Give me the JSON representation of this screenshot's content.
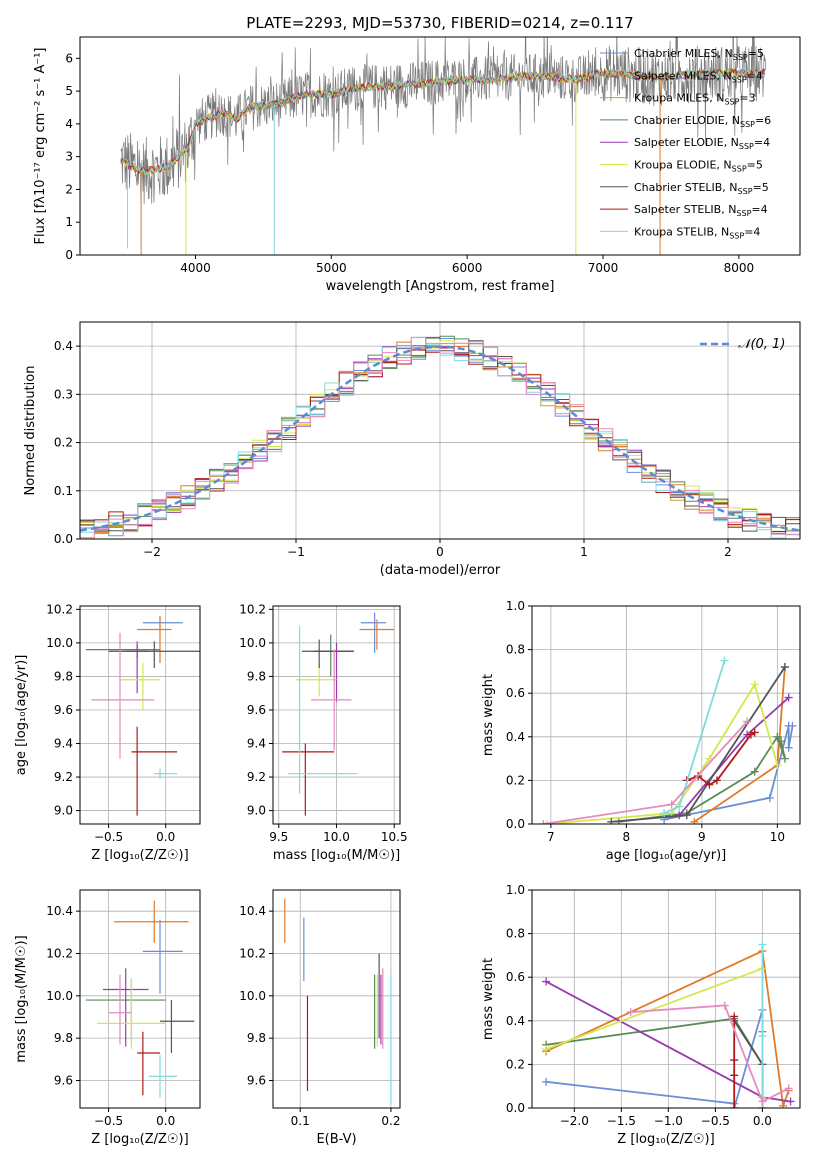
{
  "title": "PLATE=2293, MJD=53730, FIBERID=0214, z=0.117",
  "series_labels": [
    {
      "name": "Chabrier MILES, N",
      "sub": "SSP",
      "suffix": "=5",
      "color": "#6a8fd6"
    },
    {
      "name": "Salpeter MILES, N",
      "sub": "SSP",
      "suffix": "=4",
      "color": "#e07b2a"
    },
    {
      "name": "Kroupa MILES, N",
      "sub": "SSP",
      "suffix": "=3",
      "color": "#c8a020"
    },
    {
      "name": "Chabrier ELODIE, N",
      "sub": "SSP",
      "suffix": "=6",
      "color": "#5a8a5a"
    },
    {
      "name": "Salpeter ELODIE, N",
      "sub": "SSP",
      "suffix": "=4",
      "color": "#9a3ab0"
    },
    {
      "name": "Kroupa ELODIE, N",
      "sub": "SSP",
      "suffix": "=5",
      "color": "#d4e84a"
    },
    {
      "name": "Chabrier STELIB, N",
      "sub": "SSP",
      "suffix": "=5",
      "color": "#555555"
    },
    {
      "name": "Salpeter STELIB, N",
      "sub": "SSP",
      "suffix": "=4",
      "color": "#b01818"
    },
    {
      "name": "Kroupa STELIB, N",
      "sub": "SSP",
      "suffix": "=4",
      "color": "#7edcdc"
    }
  ],
  "chart_data": [
    {
      "id": "spectrum",
      "type": "line",
      "xlabel": "wavelength [Angstrom, rest frame]",
      "ylabel": "Flux [fλ10⁻¹⁷ erg cm⁻² s⁻¹ A⁻¹]",
      "xlim": [
        3150,
        8450
      ],
      "ylim": [
        0,
        6.65
      ],
      "xticks": [
        "4000",
        "5000",
        "6000",
        "7000",
        "8000"
      ],
      "yticks": [
        "0",
        "1",
        "2",
        "3",
        "4",
        "5",
        "6"
      ],
      "continuum": {
        "x": [
          3450,
          3600,
          3700,
          3800,
          3900,
          3950,
          4000,
          4100,
          4200,
          4300,
          4400,
          4600,
          4800,
          5000,
          5200,
          5400,
          5600,
          5800,
          6000,
          6200,
          6400,
          6600,
          6800,
          7000,
          7200,
          7400,
          7600,
          7800,
          8000,
          8200
        ],
        "y": [
          2.9,
          2.55,
          2.6,
          2.7,
          3.1,
          3.3,
          4.0,
          4.2,
          4.35,
          4.15,
          4.5,
          4.6,
          4.9,
          4.9,
          5.1,
          5.15,
          5.2,
          5.3,
          5.35,
          5.35,
          5.45,
          5.45,
          5.35,
          5.55,
          5.5,
          5.4,
          5.5,
          5.55,
          5.55,
          5.55
        ]
      },
      "noise_amplitude": 0.8,
      "dips": [
        {
          "x": 3500,
          "y": 0.2,
          "color": "#7edcdc"
        },
        {
          "x": 3600,
          "y": 0.0,
          "color": "#e07b2a"
        },
        {
          "x": 3930,
          "y": 0.0,
          "color": "#d4e84a"
        },
        {
          "x": 4580,
          "y": 0.0,
          "color": "#7edcdc"
        },
        {
          "x": 6800,
          "y": 0.0,
          "color": "#d4e84a"
        },
        {
          "x": 7420,
          "y": 0.0,
          "color": "#e07b2a"
        }
      ]
    },
    {
      "id": "residuals",
      "type": "area",
      "xlabel": "(data-model)/error",
      "ylabel": "Normed distribution",
      "xlim": [
        -2.5,
        2.5
      ],
      "ylim": [
        0,
        0.45
      ],
      "xticks": [
        "−2",
        "−1",
        "0",
        "1",
        "2"
      ],
      "yticks": [
        "0.0",
        "0.1",
        "0.2",
        "0.3",
        "0.4"
      ],
      "bin_width": 0.1,
      "legend": "𝒩(0, 1)",
      "legend_position": "top-right",
      "gaussian": {
        "mean": 0,
        "sigma": 1
      }
    },
    {
      "id": "age_vs_Z",
      "type": "scatter",
      "xlabel": "Z [log₁₀(Z/Z☉)]",
      "ylabel": "age  [log₁₀(age/yr)]",
      "xlim": [
        -0.75,
        0.3
      ],
      "ylim": [
        8.92,
        10.22
      ],
      "xticks": [
        "−0.5",
        "0.0"
      ],
      "yticks": [
        "9.0",
        "9.2",
        "9.4",
        "9.6",
        "9.8",
        "10.0",
        "10.2"
      ],
      "points": [
        {
          "x": -0.05,
          "y": 10.12,
          "xerr": [
            0.15,
            0.2
          ],
          "yerr": [
            0.06,
            0.04
          ],
          "color": "#6a8fd6"
        },
        {
          "x": -0.05,
          "y": 10.08,
          "xerr": [
            0.2,
            0.1
          ],
          "yerr": [
            0.2,
            0.08
          ],
          "color": "#e07b2a"
        },
        {
          "x": -0.25,
          "y": 9.96,
          "xerr": [
            0.45,
            0.2
          ],
          "yerr": [
            0.05,
            0.05
          ],
          "color": "#5a8a5a"
        },
        {
          "x": -0.25,
          "y": 9.95,
          "xerr": [
            0.1,
            0.1
          ],
          "yerr": [
            0.25,
            0.04
          ],
          "color": "#9a3ab0"
        },
        {
          "x": -0.2,
          "y": 9.78,
          "xerr": [
            0.2,
            0.15
          ],
          "yerr": [
            0.18,
            0.1
          ],
          "color": "#d4e84a"
        },
        {
          "x": -0.1,
          "y": 9.95,
          "xerr": [
            0.4,
            0.4
          ],
          "yerr": [
            0.1,
            0.06
          ],
          "color": "#555555"
        },
        {
          "x": -0.25,
          "y": 9.35,
          "xerr": [
            0.05,
            0.35
          ],
          "yerr": [
            0.38,
            0.15
          ],
          "color": "#b01818"
        },
        {
          "x": -0.05,
          "y": 9.22,
          "xerr": [
            0.05,
            0.15
          ],
          "yerr": [
            0.03,
            0.03
          ],
          "color": "#7edcdc"
        },
        {
          "x": -0.4,
          "y": 9.66,
          "xerr": [
            0.25,
            0.3
          ],
          "yerr": [
            0.35,
            0.4
          ],
          "color": "#e68ac0"
        }
      ]
    },
    {
      "id": "age_vs_mass",
      "type": "scatter",
      "xlabel": "mass [log₁₀(M/M☉)]",
      "ylabel": "",
      "xlim": [
        9.45,
        10.55
      ],
      "ylim": [
        8.92,
        10.22
      ],
      "xticks": [
        "9.5",
        "10.0",
        "10.5"
      ],
      "yticks": [
        "9.0",
        "9.2",
        "9.4",
        "9.6",
        "9.8",
        "10.0",
        "10.2"
      ],
      "points": [
        {
          "x": 10.33,
          "y": 10.12,
          "xerr": [
            0.12,
            0.1
          ],
          "yerr": [
            0.18,
            0.06
          ],
          "color": "#6a8fd6"
        },
        {
          "x": 10.35,
          "y": 10.08,
          "xerr": [
            0.15,
            0.15
          ],
          "yerr": [
            0.12,
            0.06
          ],
          "color": "#e07b2a"
        },
        {
          "x": 9.95,
          "y": 9.95,
          "xerr": [
            0.15,
            0.15
          ],
          "yerr": [
            0.15,
            0.1
          ],
          "color": "#5a8a5a"
        },
        {
          "x": 10.0,
          "y": 9.95,
          "xerr": [
            0.2,
            0.15
          ],
          "yerr": [
            0.3,
            0.05
          ],
          "color": "#9a3ab0"
        },
        {
          "x": 9.85,
          "y": 9.78,
          "xerr": [
            0.2,
            0.15
          ],
          "yerr": [
            0.1,
            0.1
          ],
          "color": "#d4e84a"
        },
        {
          "x": 9.85,
          "y": 9.95,
          "xerr": [
            0.15,
            0.3
          ],
          "yerr": [
            0.1,
            0.07
          ],
          "color": "#555555"
        },
        {
          "x": 9.73,
          "y": 9.35,
          "xerr": [
            0.2,
            0.25
          ],
          "yerr": [
            0.38,
            0.05
          ],
          "color": "#b01818"
        },
        {
          "x": 9.68,
          "y": 9.22,
          "xerr": [
            0.1,
            0.5
          ],
          "yerr": [
            0.12,
            0.88
          ],
          "color": "#7edcdc"
        },
        {
          "x": 9.98,
          "y": 9.66,
          "xerr": [
            0.2,
            0.15
          ],
          "yerr": [
            0.3,
            0.3
          ],
          "color": "#e68ac0"
        }
      ]
    },
    {
      "id": "massweight_vs_age",
      "type": "line",
      "xlabel": "age  [log₁₀(age/yr)]",
      "ylabel": "mass weight",
      "xlim": [
        6.75,
        10.3
      ],
      "ylim": [
        0,
        1.0
      ],
      "xticks": [
        "7",
        "8",
        "9",
        "10"
      ],
      "yticks": [
        "0.0",
        "0.2",
        "0.4",
        "0.6",
        "0.8",
        "1.0"
      ],
      "series": [
        {
          "color": "#6a8fd6",
          "x": [
            8.5,
            9.9,
            10.15,
            10.15,
            10.2
          ],
          "y": [
            0.02,
            0.12,
            0.45,
            0.35,
            0.45
          ]
        },
        {
          "color": "#e07b2a",
          "x": [
            8.9,
            10.0,
            10.1
          ],
          "y": [
            0.01,
            0.27,
            0.72
          ]
        },
        {
          "color": "#5a8a5a",
          "x": [
            7.9,
            8.8,
            9.7,
            10.0,
            10.1,
            10.05
          ],
          "y": [
            0.01,
            0.05,
            0.24,
            0.4,
            0.3,
            0.38
          ]
        },
        {
          "color": "#9a3ab0",
          "x": [
            8.7,
            9.6,
            10.15
          ],
          "y": [
            0.04,
            0.41,
            0.58
          ]
        },
        {
          "color": "#d4e84a",
          "x": [
            6.95,
            8.6,
            9.1,
            9.7,
            10.0
          ],
          "y": [
            0.0,
            0.05,
            0.3,
            0.64,
            0.27
          ]
        },
        {
          "color": "#555555",
          "x": [
            7.8,
            8.8,
            10.1
          ],
          "y": [
            0.01,
            0.04,
            0.72
          ]
        },
        {
          "color": "#b01818",
          "x": [
            8.8,
            8.95,
            9.1,
            9.2,
            9.65,
            9.7
          ],
          "y": [
            0.2,
            0.22,
            0.18,
            0.2,
            0.41,
            0.42
          ]
        },
        {
          "color": "#7edcdc",
          "x": [
            8.5,
            8.7,
            9.3
          ],
          "y": [
            0.05,
            0.08,
            0.75
          ]
        },
        {
          "color": "#e68ac0",
          "x": [
            6.9,
            8.6,
            9.6
          ],
          "y": [
            0.0,
            0.09,
            0.47
          ]
        }
      ]
    },
    {
      "id": "mass_vs_Z",
      "type": "scatter",
      "xlabel": "Z [log₁₀(Z/Z☉)]",
      "ylabel": "mass [log₁₀(M/M☉)]",
      "xlim": [
        -0.75,
        0.3
      ],
      "ylim": [
        9.47,
        10.5
      ],
      "xticks": [
        "−0.5",
        "0.0"
      ],
      "yticks": [
        "9.6",
        "9.8",
        "10.0",
        "10.2",
        "10.4"
      ],
      "points": [
        {
          "x": -0.05,
          "y": 10.21,
          "xerr": [
            0.15,
            0.2
          ],
          "yerr": [
            0.2,
            0.15
          ],
          "color": "#6a8fd6"
        },
        {
          "x": -0.1,
          "y": 10.35,
          "xerr": [
            0.35,
            0.3
          ],
          "yerr": [
            0.1,
            0.1
          ],
          "color": "#e07b2a"
        },
        {
          "x": -0.3,
          "y": 9.98,
          "xerr": [
            0.4,
            0.3
          ],
          "yerr": [
            0.2,
            0.1
          ],
          "color": "#5a8a5a"
        },
        {
          "x": -0.35,
          "y": 10.03,
          "xerr": [
            0.2,
            0.2
          ],
          "yerr": [
            0.27,
            0.1
          ],
          "color": "#9a3ab0"
        },
        {
          "x": -0.3,
          "y": 9.87,
          "xerr": [
            0.3,
            0.3
          ],
          "yerr": [
            0.12,
            0.21
          ],
          "color": "#d4e84a"
        },
        {
          "x": 0.05,
          "y": 9.88,
          "xerr": [
            0.1,
            0.2
          ],
          "yerr": [
            0.15,
            0.1
          ],
          "color": "#555555"
        },
        {
          "x": -0.2,
          "y": 9.73,
          "xerr": [
            0.05,
            0.15
          ],
          "yerr": [
            0.2,
            0.1
          ],
          "color": "#b01818"
        },
        {
          "x": -0.05,
          "y": 9.62,
          "xerr": [
            0.1,
            0.15
          ],
          "yerr": [
            0.1,
            0.1
          ],
          "color": "#7edcdc"
        },
        {
          "x": -0.4,
          "y": 9.92,
          "xerr": [
            0.1,
            0.1
          ],
          "yerr": [
            0.15,
            0.18
          ],
          "color": "#e68ac0"
        }
      ]
    },
    {
      "id": "mass_vs_EBV",
      "type": "scatter",
      "xlabel": "E(B-V)",
      "ylabel": "",
      "xlim": [
        0.07,
        0.21
      ],
      "ylim": [
        9.47,
        10.5
      ],
      "xticks": [
        "0.1",
        "0.2"
      ],
      "yticks": [
        "9.6",
        "9.8",
        "10.0",
        "10.2",
        "10.4"
      ],
      "points": [
        {
          "x": 0.083,
          "y": 10.35,
          "yerr": [
            0.1,
            0.11
          ],
          "color": "#e07b2a"
        },
        {
          "x": 0.104,
          "y": 10.22,
          "yerr": [
            0.15,
            0.15
          ],
          "color": "#6a8fd6"
        },
        {
          "x": 0.108,
          "y": 9.77,
          "yerr": [
            0.22,
            0.23
          ],
          "color": "#b01818"
        },
        {
          "x": 0.182,
          "y": 9.92,
          "yerr": [
            0.17,
            0.18
          ],
          "color": "#5a8a5a"
        },
        {
          "x": 0.185,
          "y": 9.98,
          "yerr": [
            0.22,
            0.12
          ],
          "color": "#d4e84a"
        },
        {
          "x": 0.187,
          "y": 10.0,
          "yerr": [
            0.2,
            0.2
          ],
          "color": "#555555"
        },
        {
          "x": 0.189,
          "y": 9.92,
          "yerr": [
            0.15,
            0.18
          ],
          "color": "#9a3ab0"
        },
        {
          "x": 0.191,
          "y": 9.95,
          "yerr": [
            0.2,
            0.18
          ],
          "color": "#e68ac0"
        },
        {
          "x": 0.2,
          "y": 9.85,
          "yerr": [
            0.36,
            0.25
          ],
          "color": "#7edcdc"
        }
      ]
    },
    {
      "id": "massweight_vs_Z",
      "type": "line",
      "xlabel": "Z [log₁₀(Z/Z☉)]",
      "ylabel": "mass weight",
      "xlim": [
        -2.45,
        0.4
      ],
      "ylim": [
        0,
        1.0
      ],
      "xticks": [
        "−2.0",
        "−1.5",
        "−1.0",
        "−0.5",
        "0.0"
      ],
      "yticks": [
        "0.0",
        "0.2",
        "0.4",
        "0.6",
        "0.8",
        "1.0"
      ],
      "series": [
        {
          "color": "#6a8fd6",
          "x": [
            -2.3,
            -0.3,
            -0.3,
            0.0,
            0.0
          ],
          "y": [
            0.12,
            0.02,
            0.0,
            0.45,
            0.35
          ]
        },
        {
          "color": "#e07b2a",
          "x": [
            -2.3,
            0.0,
            0.22,
            0.28
          ],
          "y": [
            0.26,
            0.72,
            0.01,
            0.08
          ]
        },
        {
          "color": "#5a8a5a",
          "x": [
            -2.3,
            -0.3,
            0.0,
            0.0
          ],
          "y": [
            0.29,
            0.41,
            0.2,
            0.05
          ]
        },
        {
          "color": "#9a3ab0",
          "x": [
            -2.3,
            0.0,
            0.3
          ],
          "y": [
            0.58,
            0.05,
            0.03
          ]
        },
        {
          "color": "#d4e84a",
          "x": [
            -2.3,
            0.0,
            0.0,
            0.0
          ],
          "y": [
            0.27,
            0.64,
            0.05,
            0.0
          ]
        },
        {
          "color": "#555555",
          "x": [
            -0.3,
            0.0,
            0.0
          ],
          "y": [
            0.4,
            0.2,
            0.0
          ]
        },
        {
          "color": "#b01818",
          "x": [
            -0.3,
            -0.3,
            -0.3,
            -0.3
          ],
          "y": [
            0.42,
            0.22,
            0.15,
            0.0
          ]
        },
        {
          "color": "#7edcdc",
          "x": [
            0.0,
            0.0,
            0.0
          ],
          "y": [
            0.75,
            0.33,
            0.0
          ]
        },
        {
          "color": "#e68ac0",
          "x": [
            -1.4,
            -0.4,
            0.0,
            0.28
          ],
          "y": [
            0.44,
            0.47,
            0.03,
            0.09
          ]
        }
      ]
    }
  ]
}
